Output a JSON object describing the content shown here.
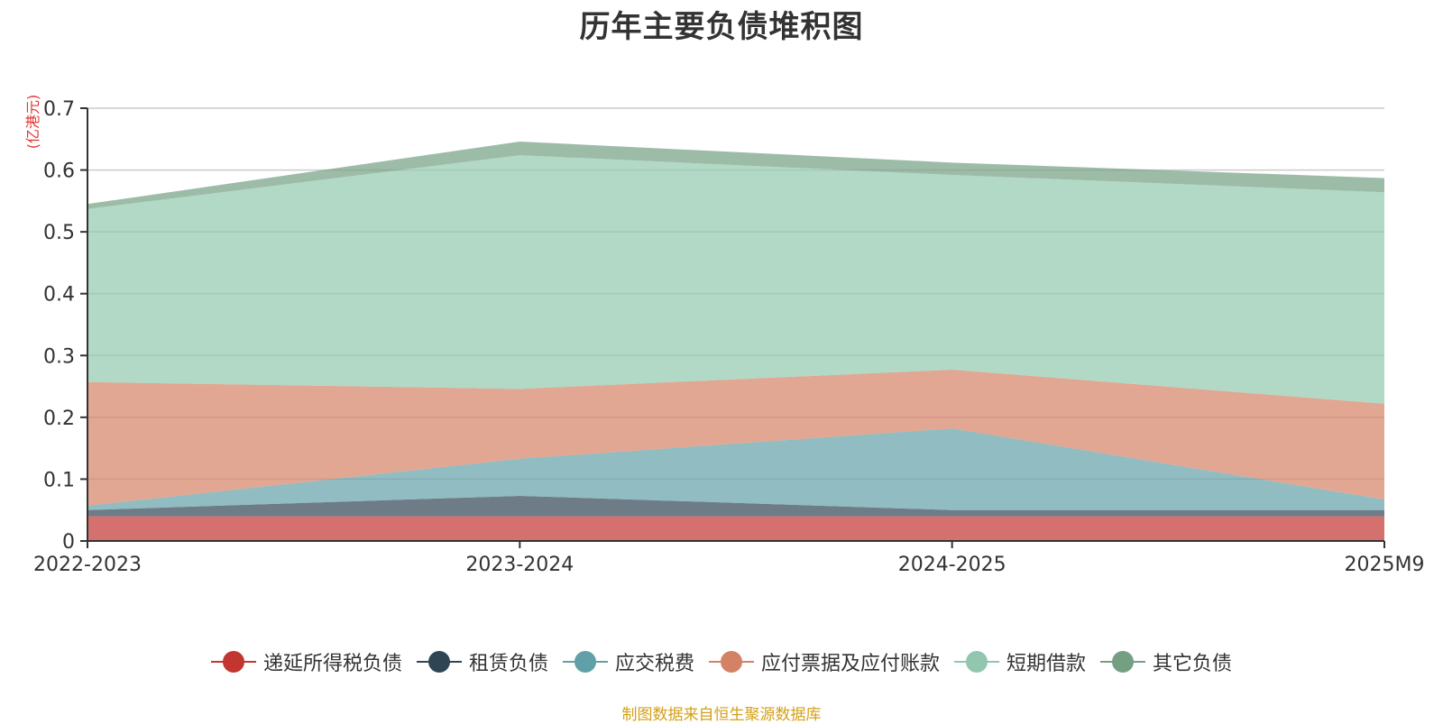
{
  "chart_data": {
    "type": "area",
    "stacked": true,
    "title": "历年主要负债堆积图",
    "unit_label": "(亿港元)",
    "categories": [
      "2022-2023",
      "2023-2024",
      "2024-2025",
      "2025M9"
    ],
    "ylim": [
      0,
      0.7
    ],
    "yticks": [
      "0",
      "0.1",
      "0.2",
      "0.3",
      "0.4",
      "0.5",
      "0.6",
      "0.7"
    ],
    "grid": true,
    "legend_position": "bottom",
    "series": [
      {
        "name": "递延所得税负债",
        "color": "#c23531",
        "values": [
          0.04,
          0.04,
          0.04,
          0.04
        ]
      },
      {
        "name": "租赁负债",
        "color": "#2f4554",
        "values": [
          0.01,
          0.033,
          0.01,
          0.01
        ]
      },
      {
        "name": "应交税费",
        "color": "#61a0a8",
        "values": [
          0.007,
          0.06,
          0.132,
          0.017
        ]
      },
      {
        "name": "应付票据及应付账款",
        "color": "#d48265",
        "values": [
          0.2,
          0.113,
          0.095,
          0.155
        ]
      },
      {
        "name": "短期借款",
        "color": "#91c7ae",
        "values": [
          0.28,
          0.378,
          0.315,
          0.342
        ]
      },
      {
        "name": "其它负债",
        "color": "#749f83",
        "values": [
          0.008,
          0.022,
          0.02,
          0.023
        ]
      }
    ],
    "source": "制图数据来自恒生聚源数据库"
  }
}
